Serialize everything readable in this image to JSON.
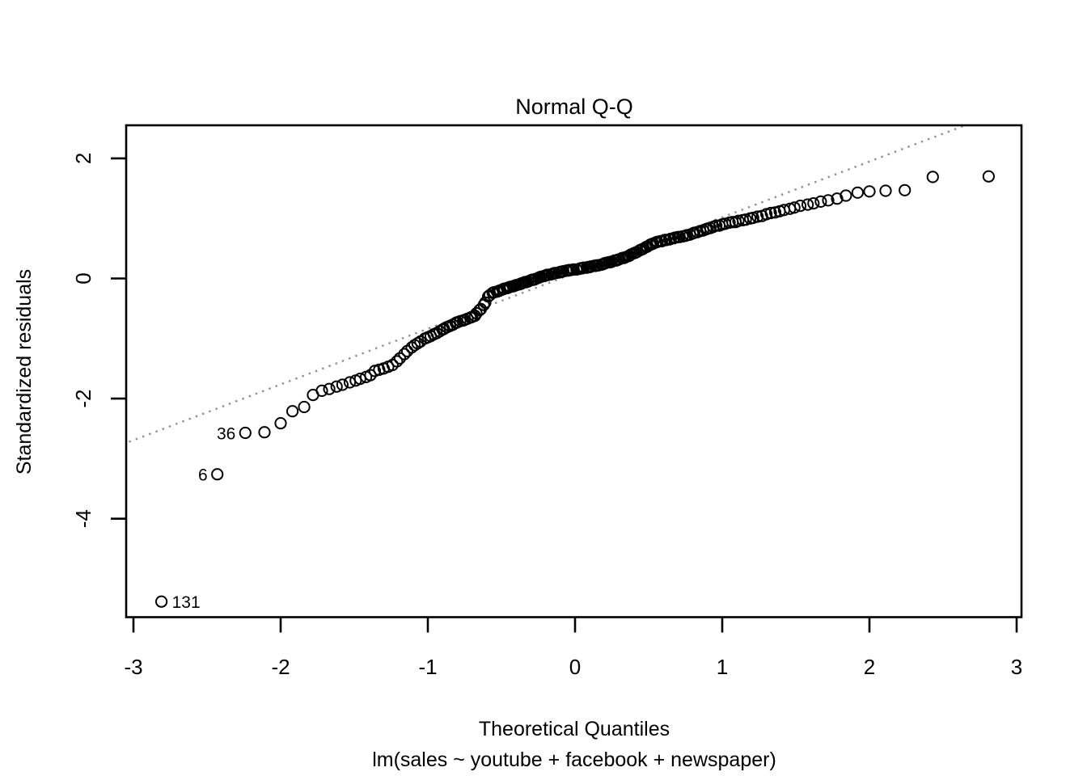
{
  "page": {
    "background": "#ffffff"
  },
  "chart_data": {
    "type": "scatter",
    "title": "Normal Q-Q",
    "xlabel": "Theoretical Quantiles",
    "xlabel_sub": "lm(sales ~ youtube + facebook + newspaper)",
    "ylabel": "Standardized residuals",
    "x_ticks": [
      -3,
      -2,
      -1,
      0,
      1,
      2,
      3
    ],
    "y_ticks": [
      2,
      0,
      -2,
      -4
    ],
    "xlim": [
      -3.05,
      3.03
    ],
    "ylim": [
      -5.66,
      2.55
    ],
    "grid": false,
    "legend": "none",
    "marker": "open-circle",
    "colors": {
      "points": "#000000",
      "reference_line": "#8f8f8f",
      "frame": "#000000",
      "text": "#000000"
    },
    "reference_line": {
      "style": "dotted",
      "x1": -3.03,
      "y1": -2.72,
      "x2": 2.65,
      "y2": 2.55
    },
    "outlier_labels": [
      {
        "label": "131",
        "x": -2.81,
        "y": -5.38,
        "side": "right"
      },
      {
        "label": "6",
        "x": -2.43,
        "y": -3.26,
        "side": "left"
      },
      {
        "label": "36",
        "x": -2.24,
        "y": -2.57,
        "side": "left"
      }
    ],
    "points": [
      [
        -2.81,
        -5.38
      ],
      [
        -2.43,
        -3.26
      ],
      [
        -2.24,
        -2.57
      ],
      [
        -2.11,
        -2.56
      ],
      [
        -2.0,
        -2.41
      ],
      [
        -1.92,
        -2.21
      ],
      [
        -1.84,
        -2.14
      ],
      [
        -1.78,
        -1.94
      ],
      [
        -1.72,
        -1.87
      ],
      [
        -1.67,
        -1.84
      ],
      [
        -1.62,
        -1.8
      ],
      [
        -1.58,
        -1.77
      ],
      [
        -1.53,
        -1.73
      ],
      [
        -1.49,
        -1.7
      ],
      [
        -1.46,
        -1.67
      ],
      [
        -1.42,
        -1.64
      ],
      [
        -1.39,
        -1.61
      ],
      [
        -1.36,
        -1.54
      ],
      [
        -1.33,
        -1.52
      ],
      [
        -1.3,
        -1.5
      ],
      [
        -1.27,
        -1.47
      ],
      [
        -1.24,
        -1.44
      ],
      [
        -1.21,
        -1.38
      ],
      [
        -1.19,
        -1.33
      ],
      [
        -1.16,
        -1.26
      ],
      [
        -1.14,
        -1.21
      ],
      [
        -1.11,
        -1.15
      ],
      [
        -1.09,
        -1.11
      ],
      [
        -1.07,
        -1.08
      ],
      [
        -1.05,
        -1.05
      ],
      [
        -1.02,
        -1.0
      ],
      [
        -1.0,
        -0.98
      ],
      [
        -0.98,
        -0.96
      ],
      [
        -0.96,
        -0.93
      ],
      [
        -0.94,
        -0.91
      ],
      [
        -0.92,
        -0.88
      ],
      [
        -0.9,
        -0.85
      ],
      [
        -0.89,
        -0.84
      ],
      [
        -0.87,
        -0.81
      ],
      [
        -0.85,
        -0.79
      ],
      [
        -0.83,
        -0.77
      ],
      [
        -0.81,
        -0.74
      ],
      [
        -0.8,
        -0.73
      ],
      [
        -0.78,
        -0.71
      ],
      [
        -0.76,
        -0.7
      ],
      [
        -0.75,
        -0.69
      ],
      [
        -0.73,
        -0.67
      ],
      [
        -0.71,
        -0.65
      ],
      [
        -0.7,
        -0.64
      ],
      [
        -0.68,
        -0.62
      ],
      [
        -0.67,
        -0.58
      ],
      [
        -0.65,
        -0.53
      ],
      [
        -0.64,
        -0.51
      ],
      [
        -0.62,
        -0.44
      ],
      [
        -0.61,
        -0.4
      ],
      [
        -0.59,
        -0.3
      ],
      [
        -0.58,
        -0.28
      ],
      [
        -0.56,
        -0.24
      ],
      [
        -0.55,
        -0.23
      ],
      [
        -0.53,
        -0.22
      ],
      [
        -0.52,
        -0.21
      ],
      [
        -0.51,
        -0.2
      ],
      [
        -0.49,
        -0.18
      ],
      [
        -0.48,
        -0.17
      ],
      [
        -0.46,
        -0.16
      ],
      [
        -0.45,
        -0.15
      ],
      [
        -0.44,
        -0.14
      ],
      [
        -0.42,
        -0.13
      ],
      [
        -0.41,
        -0.12
      ],
      [
        -0.4,
        -0.11
      ],
      [
        -0.38,
        -0.1
      ],
      [
        -0.37,
        -0.09
      ],
      [
        -0.36,
        -0.08
      ],
      [
        -0.34,
        -0.06
      ],
      [
        -0.33,
        -0.06
      ],
      [
        -0.32,
        -0.05
      ],
      [
        -0.3,
        -0.03
      ],
      [
        -0.29,
        -0.02
      ],
      [
        -0.28,
        -0.02
      ],
      [
        -0.27,
        -0.01
      ],
      [
        -0.25,
        0.01
      ],
      [
        -0.24,
        0.02
      ],
      [
        -0.23,
        0.03
      ],
      [
        -0.21,
        0.04
      ],
      [
        -0.2,
        0.05
      ],
      [
        -0.19,
        0.06
      ],
      [
        -0.18,
        0.06
      ],
      [
        -0.16,
        0.07
      ],
      [
        -0.15,
        0.08
      ],
      [
        -0.14,
        0.09
      ],
      [
        -0.13,
        0.09
      ],
      [
        -0.11,
        0.1
      ],
      [
        -0.1,
        0.11
      ],
      [
        -0.09,
        0.11
      ],
      [
        -0.08,
        0.12
      ],
      [
        -0.06,
        0.13
      ],
      [
        -0.05,
        0.13
      ],
      [
        -0.04,
        0.14
      ],
      [
        -0.03,
        0.14
      ],
      [
        -0.01,
        0.15
      ],
      [
        0.01,
        0.15
      ],
      [
        0.03,
        0.16
      ],
      [
        0.04,
        0.17
      ],
      [
        0.05,
        0.17
      ],
      [
        0.06,
        0.18
      ],
      [
        0.08,
        0.18
      ],
      [
        0.09,
        0.19
      ],
      [
        0.1,
        0.19
      ],
      [
        0.11,
        0.2
      ],
      [
        0.13,
        0.21
      ],
      [
        0.14,
        0.21
      ],
      [
        0.15,
        0.22
      ],
      [
        0.16,
        0.22
      ],
      [
        0.18,
        0.23
      ],
      [
        0.19,
        0.24
      ],
      [
        0.2,
        0.25
      ],
      [
        0.21,
        0.26
      ],
      [
        0.23,
        0.27
      ],
      [
        0.24,
        0.27
      ],
      [
        0.25,
        0.28
      ],
      [
        0.27,
        0.3
      ],
      [
        0.28,
        0.3
      ],
      [
        0.29,
        0.31
      ],
      [
        0.3,
        0.32
      ],
      [
        0.32,
        0.34
      ],
      [
        0.33,
        0.34
      ],
      [
        0.34,
        0.35
      ],
      [
        0.36,
        0.37
      ],
      [
        0.37,
        0.38
      ],
      [
        0.38,
        0.4
      ],
      [
        0.4,
        0.42
      ],
      [
        0.41,
        0.43
      ],
      [
        0.42,
        0.44
      ],
      [
        0.44,
        0.47
      ],
      [
        0.45,
        0.48
      ],
      [
        0.46,
        0.49
      ],
      [
        0.48,
        0.52
      ],
      [
        0.49,
        0.53
      ],
      [
        0.51,
        0.56
      ],
      [
        0.52,
        0.57
      ],
      [
        0.53,
        0.58
      ],
      [
        0.55,
        0.6
      ],
      [
        0.56,
        0.61
      ],
      [
        0.58,
        0.62
      ],
      [
        0.59,
        0.62
      ],
      [
        0.61,
        0.64
      ],
      [
        0.62,
        0.64
      ],
      [
        0.64,
        0.65
      ],
      [
        0.65,
        0.66
      ],
      [
        0.67,
        0.67
      ],
      [
        0.68,
        0.68
      ],
      [
        0.7,
        0.69
      ],
      [
        0.71,
        0.69
      ],
      [
        0.73,
        0.7
      ],
      [
        0.75,
        0.71
      ],
      [
        0.76,
        0.72
      ],
      [
        0.78,
        0.73
      ],
      [
        0.8,
        0.75
      ],
      [
        0.81,
        0.76
      ],
      [
        0.83,
        0.77
      ],
      [
        0.85,
        0.79
      ],
      [
        0.87,
        0.8
      ],
      [
        0.89,
        0.82
      ],
      [
        0.9,
        0.83
      ],
      [
        0.92,
        0.84
      ],
      [
        0.94,
        0.86
      ],
      [
        0.96,
        0.88
      ],
      [
        0.98,
        0.88
      ],
      [
        1.0,
        0.9
      ],
      [
        1.02,
        0.91
      ],
      [
        1.05,
        0.93
      ],
      [
        1.07,
        0.94
      ],
      [
        1.09,
        0.94
      ],
      [
        1.11,
        0.96
      ],
      [
        1.14,
        0.97
      ],
      [
        1.16,
        0.98
      ],
      [
        1.19,
        1.0
      ],
      [
        1.21,
        1.01
      ],
      [
        1.24,
        1.03
      ],
      [
        1.27,
        1.04
      ],
      [
        1.3,
        1.07
      ],
      [
        1.33,
        1.09
      ],
      [
        1.36,
        1.1
      ],
      [
        1.39,
        1.12
      ],
      [
        1.42,
        1.14
      ],
      [
        1.46,
        1.16
      ],
      [
        1.49,
        1.18
      ],
      [
        1.53,
        1.21
      ],
      [
        1.58,
        1.23
      ],
      [
        1.62,
        1.25
      ],
      [
        1.67,
        1.28
      ],
      [
        1.72,
        1.3
      ],
      [
        1.78,
        1.33
      ],
      [
        1.84,
        1.38
      ],
      [
        1.92,
        1.43
      ],
      [
        2.0,
        1.45
      ],
      [
        2.11,
        1.46
      ],
      [
        2.24,
        1.47
      ],
      [
        2.43,
        1.69
      ],
      [
        2.81,
        1.7
      ]
    ]
  }
}
